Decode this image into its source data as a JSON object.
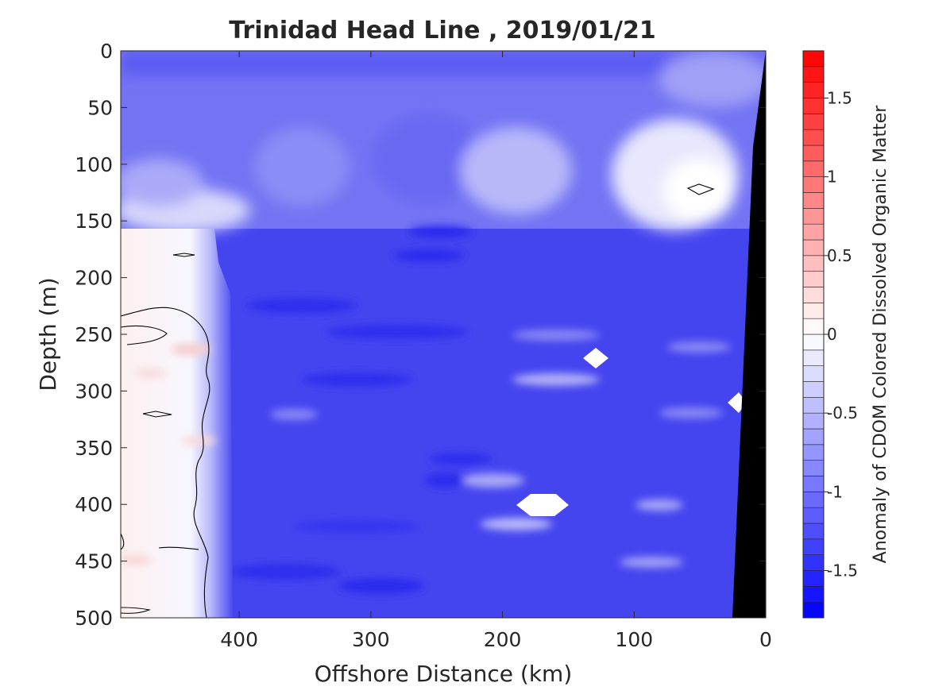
{
  "chart_data": {
    "type": "heatmap",
    "title": "Trinidad Head Line , 2019/01/21",
    "xlabel": "Offshore Distance (km)",
    "ylabel": "Depth (m)",
    "colorbar_label": "Anomaly of CDOM Colored Dissolved Organic Matter",
    "xlim": [
      490,
      0
    ],
    "ylim": [
      500,
      0
    ],
    "x_ticks": [
      400,
      300,
      200,
      100,
      0
    ],
    "y_ticks": [
      0,
      50,
      100,
      150,
      200,
      250,
      300,
      350,
      400,
      450,
      500
    ],
    "colorbar_range": [
      -1.8,
      1.8
    ],
    "colorbar_ticks": [
      1.5,
      1,
      0.5,
      0,
      -0.5,
      -1,
      -1.5
    ],
    "colormap": {
      "negative": "#0000ff",
      "zero": "#ffffff",
      "positive": "#ff0000"
    },
    "mask_color": "#000000",
    "typical_values": {
      "surface_0_150m": -1.0,
      "subsurface_150_500m": -1.3,
      "offshore_410_490km_below_200m": 0.1,
      "nearshore_50km_100_150m": 0.0
    }
  }
}
